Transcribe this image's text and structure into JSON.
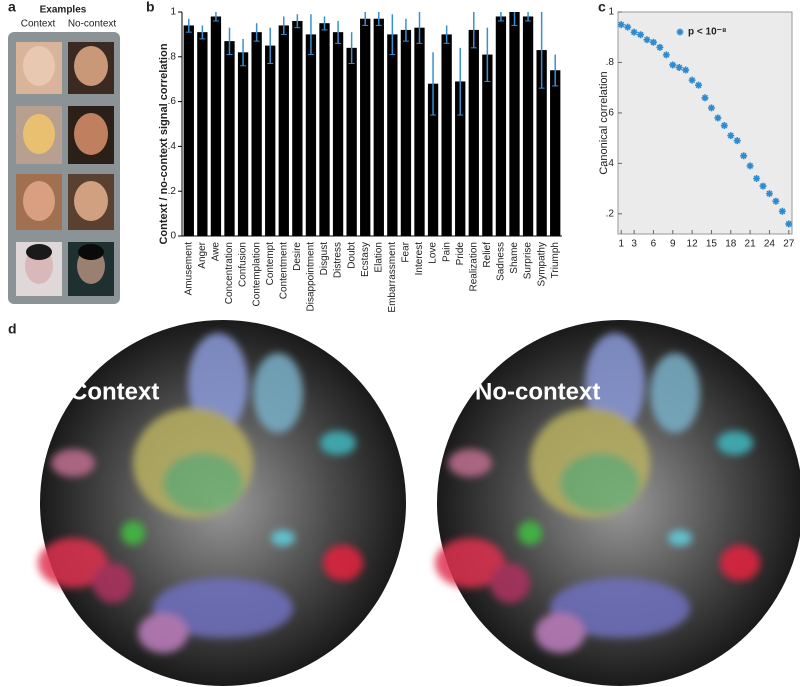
{
  "panel_labels": [
    "a",
    "b",
    "c",
    "d"
  ],
  "examples": {
    "title": "Examples",
    "columns": [
      "Context",
      "No-context"
    ]
  },
  "maps": {
    "labels": [
      "Context",
      "No-context"
    ]
  },
  "chart_data": [
    {
      "type": "bar",
      "ylabel": "Context / no-context signal correlation",
      "categories": [
        "Amusement",
        "Anger",
        "Awe",
        "Concentration",
        "Confusion",
        "Contemplation",
        "Contempt",
        "Contentment",
        "Desire",
        "Disappointment",
        "Disgust",
        "Distress",
        "Doubt",
        "Ecstasy",
        "Elation",
        "Embarrassment",
        "Fear",
        "Interest",
        "Love",
        "Pain",
        "Pride",
        "Realization",
        "Relief",
        "Sadness",
        "Shame",
        "Surprise",
        "Sympathy",
        "Triumph"
      ],
      "values": [
        0.94,
        0.91,
        0.98,
        0.87,
        0.82,
        0.91,
        0.85,
        0.94,
        0.96,
        0.9,
        0.95,
        0.91,
        0.84,
        0.97,
        0.97,
        0.9,
        0.92,
        0.93,
        0.68,
        0.9,
        0.69,
        0.92,
        0.81,
        0.98,
        1.0,
        0.98,
        0.83,
        0.74
      ],
      "errors": [
        0.03,
        0.03,
        0.02,
        0.06,
        0.06,
        0.04,
        0.08,
        0.04,
        0.03,
        0.09,
        0.03,
        0.05,
        0.07,
        0.03,
        0.03,
        0.09,
        0.05,
        0.07,
        0.14,
        0.04,
        0.15,
        0.08,
        0.12,
        0.02,
        0.06,
        0.02,
        0.17,
        0.07
      ],
      "color": "#000000",
      "error_color": "#3a8fd0",
      "ylim": [
        0,
        1
      ],
      "yticks": [
        0,
        {
          "value": 0.2,
          "label": ".2"
        },
        {
          "value": 0.4,
          "label": ".4"
        },
        {
          "value": 0.6,
          "label": ".6"
        },
        {
          "value": 0.8,
          "label": ".8"
        },
        1
      ]
    },
    {
      "type": "scatter",
      "ylabel": "Canonical correlation",
      "x": [
        1,
        2,
        3,
        4,
        5,
        6,
        7,
        8,
        9,
        10,
        11,
        12,
        13,
        14,
        15,
        16,
        17,
        18,
        19,
        20,
        21,
        22,
        23,
        24,
        25,
        26,
        27
      ],
      "series": [
        {
          "name": "p < 10⁻⁸",
          "color": "#2e8bd0",
          "values": [
            0.95,
            0.94,
            0.92,
            0.91,
            0.89,
            0.88,
            0.86,
            0.83,
            0.79,
            0.78,
            0.77,
            0.73,
            0.71,
            0.66,
            0.62,
            0.58,
            0.55,
            0.51,
            0.49,
            0.43,
            0.39,
            0.34,
            0.31,
            0.28,
            0.25,
            0.21,
            0.16
          ]
        }
      ],
      "xlim": [
        0.5,
        27.5
      ],
      "ylim": [
        0.12,
        1
      ],
      "xticks": [
        1,
        3,
        6,
        9,
        12,
        15,
        18,
        21,
        24,
        27
      ],
      "yticks": [
        {
          "value": 0.2,
          "label": ".2"
        },
        {
          "value": 0.4,
          "label": ".4"
        },
        {
          "value": 0.6,
          "label": ".6"
        },
        {
          "value": 0.8,
          "label": ".8"
        },
        1
      ],
      "background": "#ebebeb",
      "legend": "upper right"
    }
  ]
}
